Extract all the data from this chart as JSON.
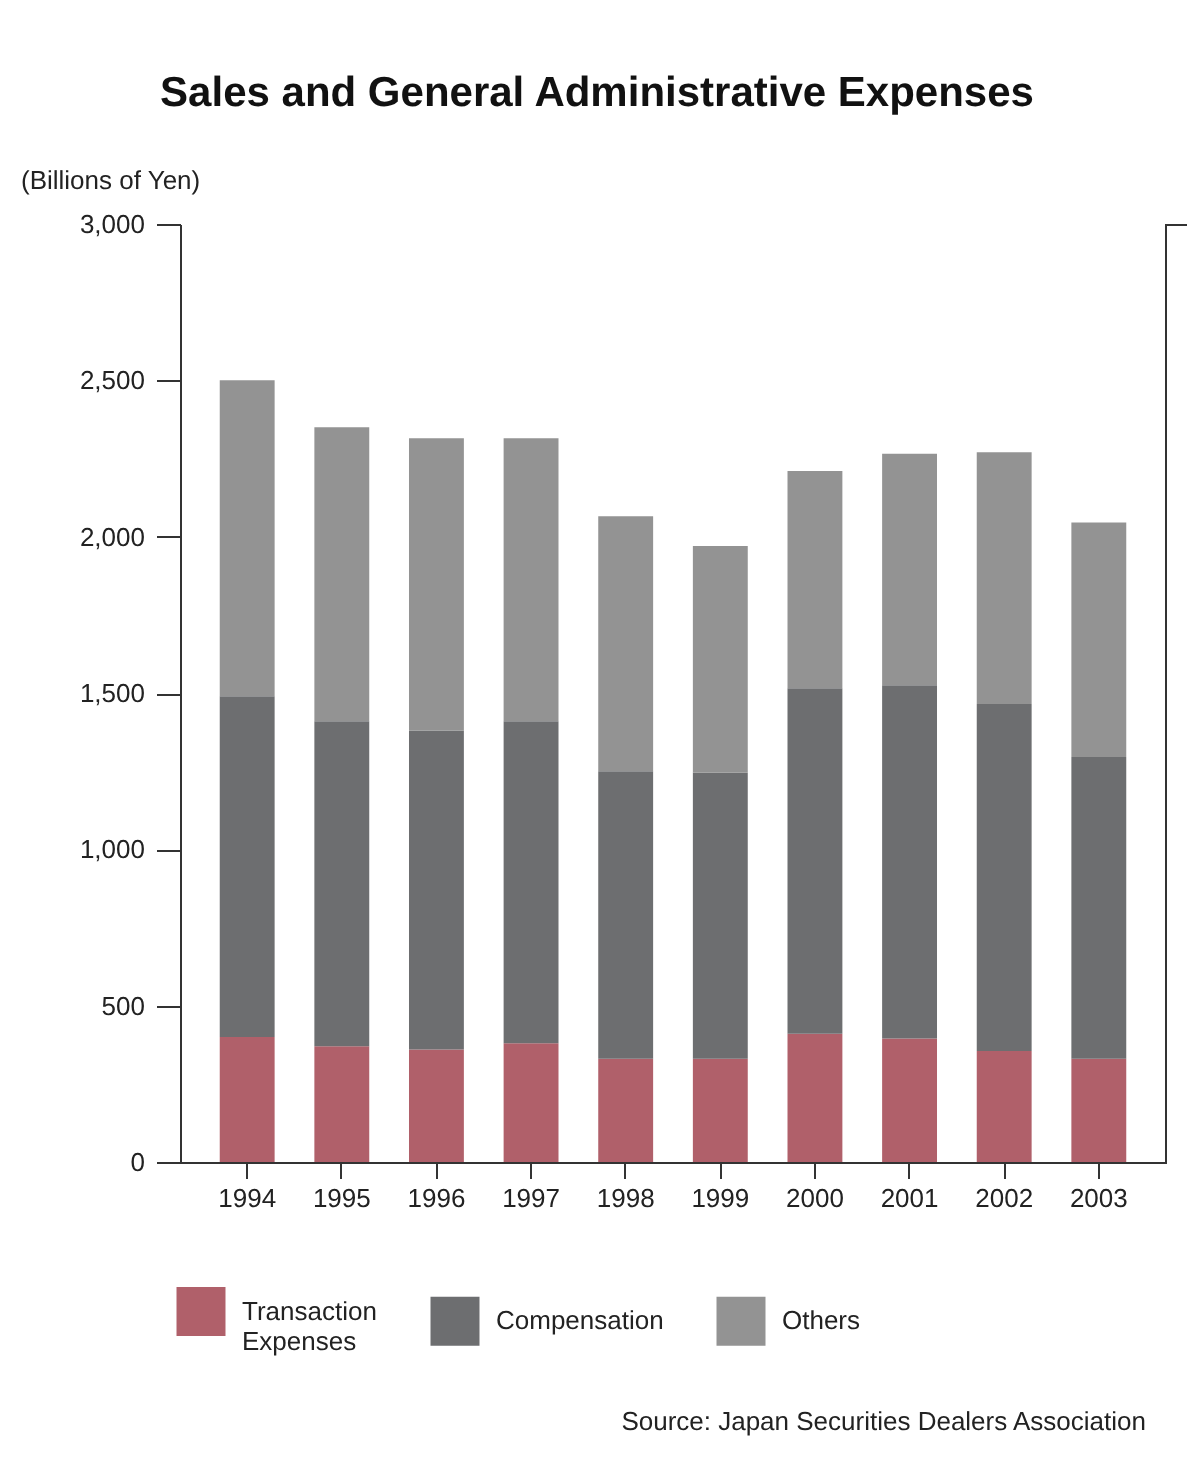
{
  "chart_data": {
    "type": "bar",
    "title": "Sales and General Administrative Expenses",
    "ylabel": "(Billions of Yen)",
    "categories": [
      "1994",
      "1995",
      "1996",
      "1997",
      "1998",
      "1999",
      "2000",
      "2001",
      "2002",
      "2003"
    ],
    "stacked": true,
    "series": [
      {
        "name": "Transaction Expenses",
        "color": "#b0606a",
        "values": [
          400,
          370,
          360,
          380,
          330,
          330,
          410,
          395,
          355,
          330
        ]
      },
      {
        "name": "Compensation",
        "color": "#6d6e70",
        "values": [
          1090,
          1040,
          1020,
          1030,
          920,
          915,
          1105,
          1130,
          1110,
          965
        ]
      },
      {
        "name": "Others",
        "color": "#939393",
        "values": [
          1010,
          940,
          935,
          905,
          815,
          725,
          695,
          740,
          805,
          750
        ]
      }
    ],
    "ylim": [
      0,
      3000
    ],
    "yticks": [
      0,
      500,
      {
        "value": 1000,
        "label": "1,000"
      },
      {
        "value": 1500,
        "label": "1,500"
      },
      {
        "value": 2000,
        "label": "2,000"
      },
      {
        "value": 2500,
        "label": "2,500"
      },
      {
        "value": 3000,
        "label": "3,000"
      }
    ],
    "legend": "bottom",
    "annotations": [
      "Source: Japan Securities Dealers Association"
    ]
  }
}
